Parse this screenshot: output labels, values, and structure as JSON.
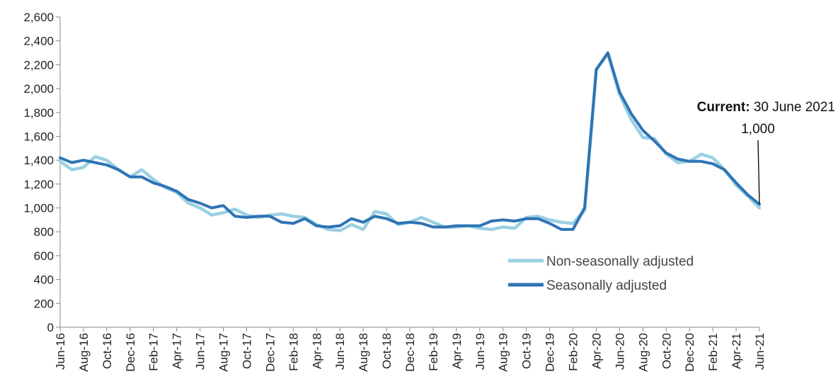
{
  "chart_data": {
    "type": "line",
    "x": [
      "Jun-16",
      "Jul-16",
      "Aug-16",
      "Sep-16",
      "Oct-16",
      "Nov-16",
      "Dec-16",
      "Jan-17",
      "Feb-17",
      "Mar-17",
      "Apr-17",
      "May-17",
      "Jun-17",
      "Jul-17",
      "Aug-17",
      "Sep-17",
      "Oct-17",
      "Nov-17",
      "Dec-17",
      "Jan-18",
      "Feb-18",
      "Mar-18",
      "Apr-18",
      "May-18",
      "Jun-18",
      "Jul-18",
      "Aug-18",
      "Sep-18",
      "Oct-18",
      "Nov-18",
      "Dec-18",
      "Jan-19",
      "Feb-19",
      "Mar-19",
      "Apr-19",
      "May-19",
      "Jun-19",
      "Jul-19",
      "Aug-19",
      "Sep-19",
      "Oct-19",
      "Nov-19",
      "Dec-19",
      "Jan-20",
      "Feb-20",
      "Mar-20",
      "Apr-20",
      "May-20",
      "Jun-20",
      "Jul-20",
      "Aug-20",
      "Sep-20",
      "Oct-20",
      "Nov-20",
      "Dec-20",
      "Jan-21",
      "Feb-21",
      "Mar-21",
      "Apr-21",
      "May-21",
      "Jun-21"
    ],
    "tick_labels": [
      "Jun-16",
      "Aug-16",
      "Oct-16",
      "Dec-16",
      "Feb-17",
      "Apr-17",
      "Jun-17",
      "Aug-17",
      "Oct-17",
      "Dec-17",
      "Feb-18",
      "Apr-18",
      "Jun-18",
      "Aug-18",
      "Oct-18",
      "Dec-18",
      "Feb-19",
      "Apr-19",
      "Jun-19",
      "Aug-19",
      "Oct-19",
      "Dec-19",
      "Feb-20",
      "Apr-20",
      "Jun-20",
      "Aug-20",
      "Oct-20",
      "Dec-20",
      "Feb-21",
      "Apr-21",
      "Jun-21"
    ],
    "y_ticks": [
      "0",
      "200",
      "400",
      "600",
      "800",
      "1,000",
      "1,200",
      "1,400",
      "1,600",
      "1,800",
      "2,000",
      "2,200",
      "2,400",
      "2,600"
    ],
    "ylim": [
      0,
      2600
    ],
    "series": [
      {
        "name": "Non-seasonally adjusted",
        "color": "#9ad0e2",
        "values": [
          1390,
          1320,
          1340,
          1430,
          1400,
          1320,
          1260,
          1320,
          1240,
          1170,
          1130,
          1040,
          1000,
          940,
          960,
          990,
          940,
          920,
          940,
          950,
          930,
          920,
          860,
          820,
          810,
          860,
          820,
          970,
          950,
          860,
          880,
          920,
          880,
          840,
          840,
          850,
          830,
          820,
          840,
          830,
          920,
          930,
          900,
          880,
          870,
          980,
          2160,
          2290,
          1950,
          1740,
          1590,
          1580,
          1450,
          1380,
          1390,
          1450,
          1420,
          1320,
          1190,
          1100,
          1000
        ]
      },
      {
        "name": "Seasonally adjusted",
        "color": "#2e74b5",
        "values": [
          1420,
          1380,
          1400,
          1380,
          1360,
          1320,
          1260,
          1260,
          1210,
          1180,
          1140,
          1070,
          1040,
          1000,
          1020,
          930,
          920,
          930,
          930,
          880,
          870,
          910,
          850,
          840,
          850,
          910,
          880,
          930,
          910,
          870,
          880,
          870,
          840,
          840,
          850,
          850,
          850,
          890,
          900,
          890,
          910,
          910,
          870,
          820,
          820,
          1000,
          2160,
          2300,
          1970,
          1790,
          1650,
          1560,
          1460,
          1410,
          1390,
          1390,
          1370,
          1320,
          1210,
          1110,
          1030
        ]
      }
    ],
    "annotation": {
      "label_bold": "Current:",
      "label_rest": " 30 June 2021",
      "value": "1,000"
    },
    "legend_position": "bottom-right",
    "grid": false
  }
}
